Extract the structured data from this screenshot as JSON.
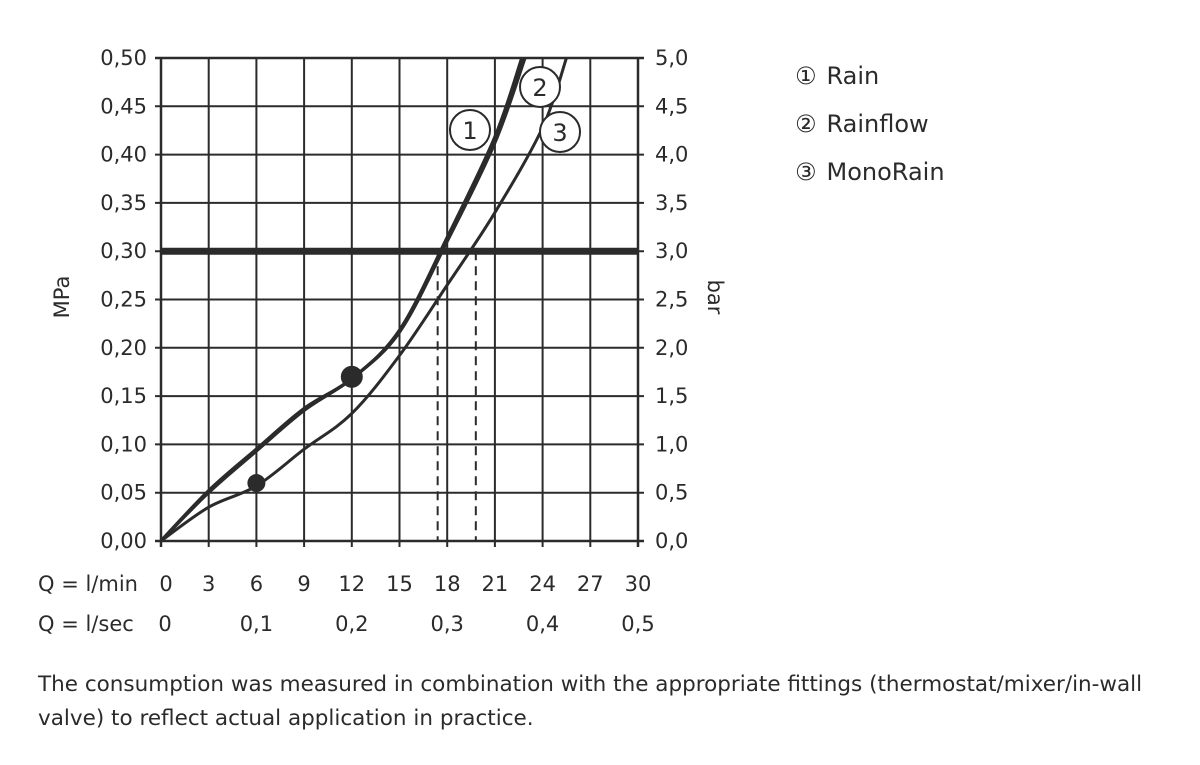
{
  "chart_data": {
    "type": "line",
    "xlabel_rows": [
      {
        "label": "Q = l/min",
        "ticks": [
          "0",
          "3",
          "6",
          "9",
          "12",
          "15",
          "18",
          "21",
          "24",
          "27",
          "30"
        ],
        "at": [
          0,
          3,
          6,
          9,
          12,
          15,
          18,
          21,
          24,
          27,
          30
        ]
      },
      {
        "label": "Q = l/sec",
        "ticks": [
          "0",
          "0,1",
          "0,2",
          "0,3",
          "0,4",
          "0,5"
        ],
        "at": [
          0,
          6,
          12,
          18,
          24,
          30
        ]
      }
    ],
    "ylabel_left": "MPa",
    "ylabel_right": "bar",
    "yticks_left": [
      "0,00",
      "0,05",
      "0,10",
      "0,15",
      "0,20",
      "0,25",
      "0,30",
      "0,35",
      "0,40",
      "0,45",
      "0,50"
    ],
    "yticks_right": [
      "0,0",
      "0,5",
      "1,0",
      "1,5",
      "2,0",
      "2,5",
      "3,0",
      "3,5",
      "4,0",
      "4,5",
      "5,0"
    ],
    "xlim": [
      0,
      30
    ],
    "ylim": [
      0,
      0.5
    ],
    "grid": true,
    "reference_line_y": 0.3,
    "reference_drops_x": [
      17.4,
      19.8
    ],
    "series": [
      {
        "name": "Rain",
        "marker": "1",
        "x": [
          0,
          3,
          6,
          9,
          12,
          15,
          18,
          21,
          22.7
        ],
        "y": [
          0,
          0.052,
          0.095,
          0.137,
          0.168,
          0.218,
          0.314,
          0.418,
          0.5
        ]
      },
      {
        "name": "Rainflow",
        "marker": "2",
        "x": [
          0,
          3,
          6,
          9,
          12,
          15,
          18,
          21,
          22.9
        ],
        "y": [
          0,
          0.05,
          0.093,
          0.135,
          0.168,
          0.216,
          0.31,
          0.412,
          0.5
        ]
      },
      {
        "name": "MonoRain",
        "marker": "3",
        "x": [
          0,
          3,
          6,
          9,
          12,
          15,
          18,
          21,
          24,
          25.5
        ],
        "y": [
          0,
          0.035,
          0.057,
          0.095,
          0.132,
          0.192,
          0.265,
          0.34,
          0.428,
          0.5
        ]
      }
    ],
    "points": [
      {
        "x": 12,
        "y": 0.17,
        "size": "large"
      },
      {
        "x": 6,
        "y": 0.06,
        "size": "small"
      }
    ],
    "legend": [
      {
        "marker": "①",
        "name": "Rain"
      },
      {
        "marker": "②",
        "name": "Rainflow"
      },
      {
        "marker": "③",
        "name": "MonoRain"
      }
    ],
    "color": "#2b2b2b"
  },
  "footnote": "The consumption was measured in combination with the appropriate fittings (thermostat/mixer/in-wall valve) to reflect actual application in practice."
}
